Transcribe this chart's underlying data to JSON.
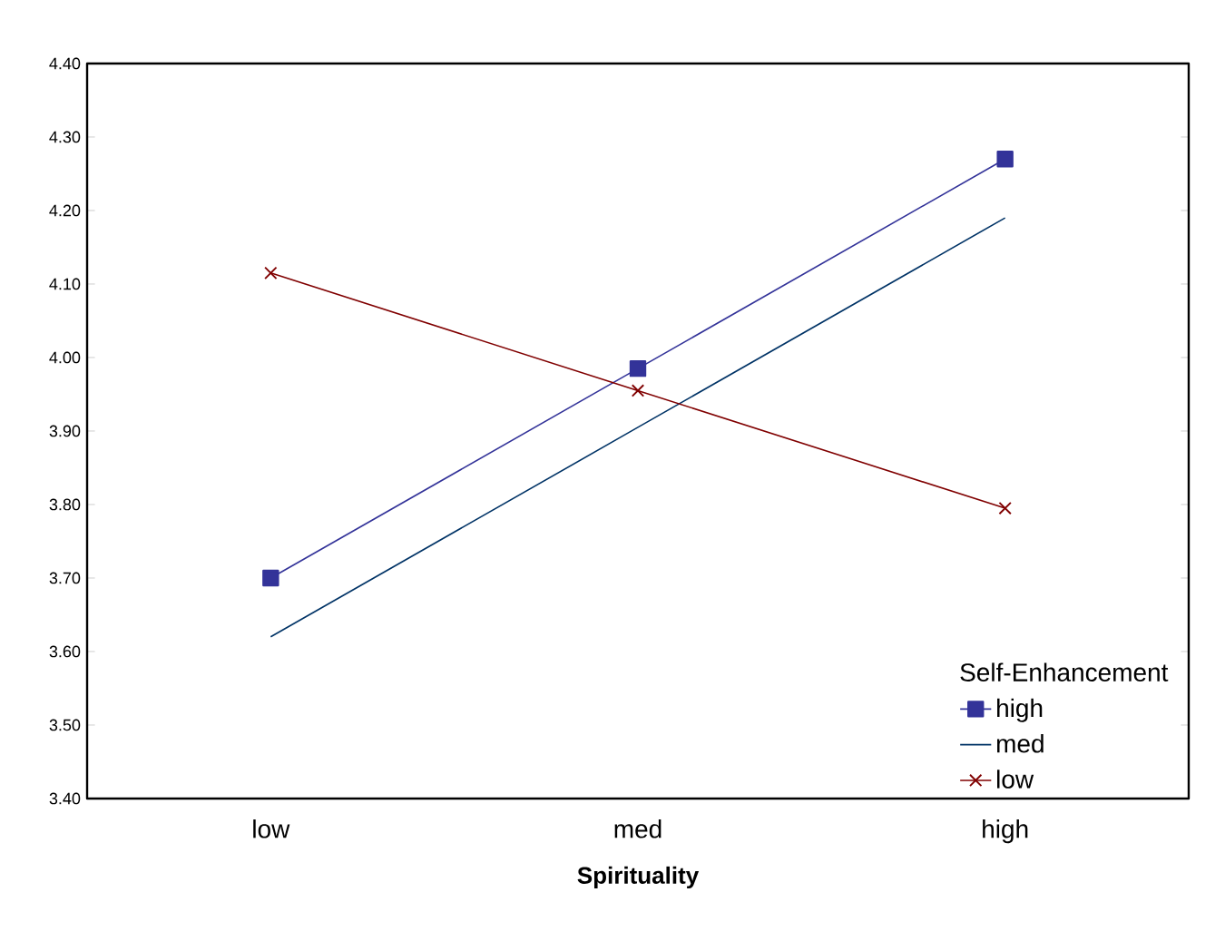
{
  "chart_data": {
    "type": "line",
    "xlabel": "Spirituality",
    "legend_title": "Self-Enhancement",
    "categories": [
      "low",
      "med",
      "high"
    ],
    "series": [
      {
        "name": "high",
        "color": "#333399",
        "marker": "square",
        "values": [
          3.7,
          3.985,
          4.27
        ]
      },
      {
        "name": "med",
        "color": "#003366",
        "marker": "none",
        "values": [
          3.62,
          3.905,
          4.19
        ]
      },
      {
        "name": "low",
        "color": "#800000",
        "marker": "cross",
        "values": [
          4.115,
          3.955,
          3.795
        ]
      }
    ],
    "ylim": [
      3.4,
      4.4
    ],
    "yticks": [
      {
        "value": 3.4,
        "label": "3.40"
      },
      {
        "value": 3.5,
        "label": "3.50"
      },
      {
        "value": 3.6,
        "label": "3.60"
      },
      {
        "value": 3.7,
        "label": "3.70"
      },
      {
        "value": 3.8,
        "label": "3.80"
      },
      {
        "value": 3.9,
        "label": "3.90"
      },
      {
        "value": 4.0,
        "label": "4.00"
      },
      {
        "value": 4.1,
        "label": "4.10"
      },
      {
        "value": 4.2,
        "label": "4.20"
      },
      {
        "value": 4.3,
        "label": "4.30"
      },
      {
        "value": 4.4,
        "label": "4.40"
      }
    ],
    "legend": "bottom right",
    "grid": false,
    "line_style": "solid"
  }
}
